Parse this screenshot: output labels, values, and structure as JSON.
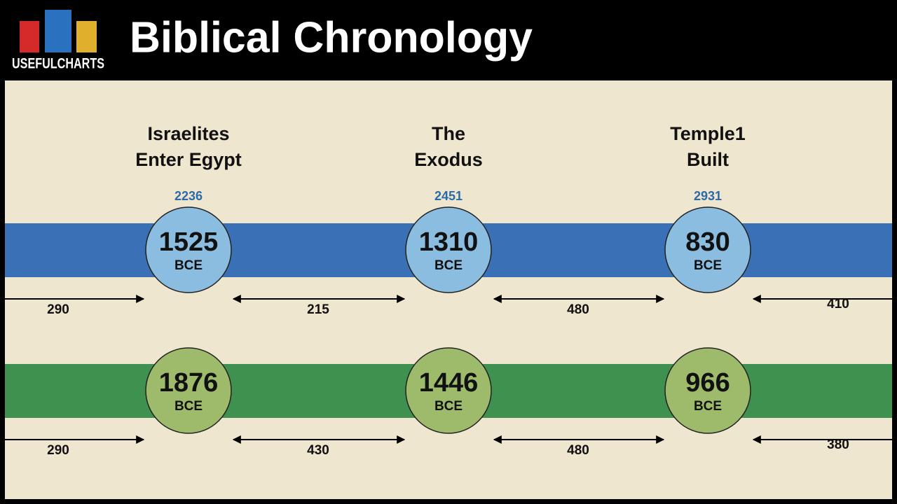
{
  "header": {
    "logo": "USEFULCHARTS",
    "title": "Biblical Chronology"
  },
  "events": [
    {
      "label": [
        "Israelites",
        "Enter Egypt"
      ],
      "year_label": "2236"
    },
    {
      "label": [
        "The",
        "Exodus"
      ],
      "year_label": "2451"
    },
    {
      "label": [
        "Temple1",
        "Built"
      ],
      "year_label": "2931"
    }
  ],
  "timelines": [
    {
      "dates": [
        {
          "year": "1525",
          "era": "BCE"
        },
        {
          "year": "1310",
          "era": "BCE"
        },
        {
          "year": "830",
          "era": "BCE"
        }
      ],
      "intervals": [
        "290",
        "215",
        "480",
        "410"
      ]
    },
    {
      "dates": [
        {
          "year": "1876",
          "era": "BCE"
        },
        {
          "year": "1446",
          "era": "BCE"
        },
        {
          "year": "966",
          "era": "BCE"
        }
      ],
      "intervals": [
        "290",
        "430",
        "480",
        "380"
      ]
    }
  ]
}
